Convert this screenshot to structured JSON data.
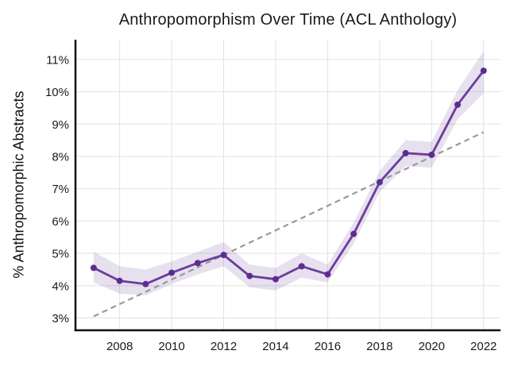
{
  "title": "Anthropomorphism Over Time (ACL Anthology)",
  "colors": {
    "line": "#6a3d9a",
    "marker": "#5c2d91",
    "band": "rgba(106,61,154,0.16)",
    "trend": "#999999",
    "grid": "#e2e2e2",
    "spine": "#111111",
    "tick_text": "#1a1a1a"
  },
  "chart_data": {
    "type": "line",
    "title": "Anthropomorphism Over Time (ACL Anthology)",
    "xlabel": "",
    "ylabel": "% Anthropomorphic Abstracts",
    "grid": true,
    "legend_position": "none",
    "xlim": [
      2006.3,
      2022.65
    ],
    "ylim": [
      2.62,
      11.61
    ],
    "xticks": [
      {
        "value": 2008,
        "label": "2008"
      },
      {
        "value": 2010,
        "label": "2010"
      },
      {
        "value": 2012,
        "label": "2012"
      },
      {
        "value": 2014,
        "label": "2014"
      },
      {
        "value": 2016,
        "label": "2016"
      },
      {
        "value": 2018,
        "label": "2018"
      },
      {
        "value": 2020,
        "label": "2020"
      },
      {
        "value": 2022,
        "label": "2022"
      }
    ],
    "yticks": [
      {
        "value": 3,
        "label": "3%"
      },
      {
        "value": 4,
        "label": "4%"
      },
      {
        "value": 5,
        "label": "5%"
      },
      {
        "value": 6,
        "label": "6%"
      },
      {
        "value": 7,
        "label": "7%"
      },
      {
        "value": 8,
        "label": "8%"
      },
      {
        "value": 9,
        "label": "9%"
      },
      {
        "value": 10,
        "label": "10%"
      },
      {
        "value": 11,
        "label": "11%"
      }
    ],
    "series": [
      {
        "name": "% anthropomorphic abstracts",
        "style": "solid-with-markers",
        "points": [
          {
            "year": 2007,
            "value": 4.55,
            "lo": 4.1,
            "hi": 5.05
          },
          {
            "year": 2008,
            "value": 4.15,
            "lo": 3.75,
            "hi": 4.6
          },
          {
            "year": 2009,
            "value": 4.05,
            "lo": 3.7,
            "hi": 4.5
          },
          {
            "year": 2010,
            "value": 4.4,
            "lo": 4.05,
            "hi": 4.75
          },
          {
            "year": 2011,
            "value": 4.7,
            "lo": 4.35,
            "hi": 5.05
          },
          {
            "year": 2012,
            "value": 4.95,
            "lo": 4.6,
            "hi": 5.35
          },
          {
            "year": 2013,
            "value": 4.3,
            "lo": 3.95,
            "hi": 4.65
          },
          {
            "year": 2014,
            "value": 4.2,
            "lo": 3.85,
            "hi": 4.55
          },
          {
            "year": 2015,
            "value": 4.6,
            "lo": 4.25,
            "hi": 5.0
          },
          {
            "year": 2016,
            "value": 4.35,
            "lo": 4.1,
            "hi": 4.65
          },
          {
            "year": 2017,
            "value": 5.6,
            "lo": 5.3,
            "hi": 5.95
          },
          {
            "year": 2018,
            "value": 7.2,
            "lo": 6.9,
            "hi": 7.55
          },
          {
            "year": 2019,
            "value": 8.1,
            "lo": 7.7,
            "hi": 8.5
          },
          {
            "year": 2020,
            "value": 8.05,
            "lo": 7.65,
            "hi": 8.45
          },
          {
            "year": 2021,
            "value": 9.6,
            "lo": 9.15,
            "hi": 10.05
          },
          {
            "year": 2022,
            "value": 10.65,
            "lo": 9.95,
            "hi": 11.25
          }
        ]
      },
      {
        "name": "linear trend",
        "style": "dashed",
        "points": [
          {
            "year": 2007,
            "value": 3.05
          },
          {
            "year": 2022,
            "value": 8.75
          }
        ]
      }
    ]
  }
}
